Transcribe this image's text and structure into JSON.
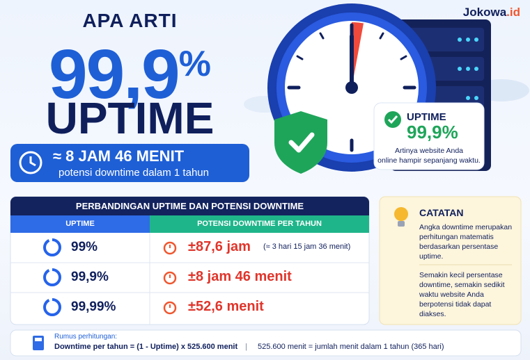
{
  "brand": {
    "name": "Jokowa",
    "suffix": ".id"
  },
  "headline": {
    "pre": "APA ARTI",
    "number": "99,9",
    "unit": "%",
    "word": "UPTIME"
  },
  "badge": {
    "main": "≈ 8 JAM 46 MENIT",
    "sub": "potensi downtime dalam 1 tahun"
  },
  "card": {
    "label": "UPTIME",
    "value": "99,9%",
    "lines": [
      "Artinya website Anda",
      "online hampir sepanjang waktu."
    ]
  },
  "table": {
    "title": "PERBANDINGAN UPTIME DAN POTENSI DOWNTIME",
    "headers": [
      "UPTIME",
      "POTENSI DOWNTIME PER TAHUN"
    ],
    "rows": [
      [
        "99%",
        "±87,6 jam",
        "(≈ 3 hari 15 jam 36 menit)"
      ],
      [
        "99,9%",
        "±8 jam 46 menit"
      ],
      [
        "99,99%",
        "±52,6 menit"
      ]
    ]
  },
  "note": {
    "title": "CATATAN",
    "paragraphs": [
      "Angka downtime merupakan perhitungan matematis berdasarkan persentase uptime.",
      "Semakin kecil persentase downtime, semakin sedikit waktu website Anda berpotensi tidak dapat diakses."
    ]
  },
  "formula": {
    "label": "Rumus perhitungan:",
    "expression": "Downtime per tahun = (1 - Uptime) x 525.600 menit",
    "separator": "|",
    "explanation": "525.600 menit = jumlah menit dalam 1 tahun (365 hari)"
  }
}
